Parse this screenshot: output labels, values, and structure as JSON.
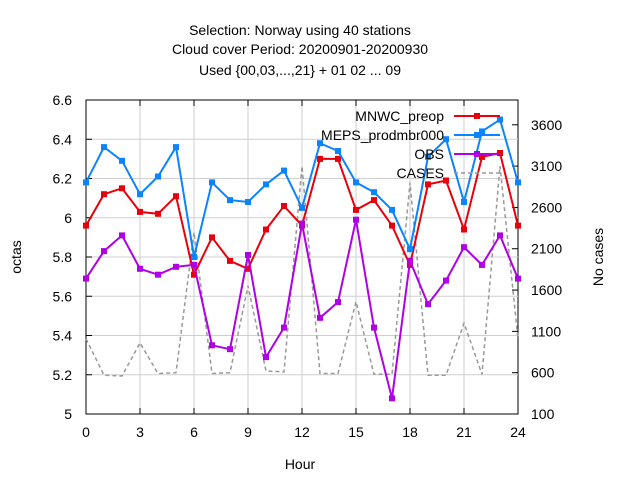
{
  "chart_data": {
    "type": "line",
    "title_lines": [
      "Selection: Norway using    40 stations",
      "Cloud cover   Period: 20200901-20200930",
      "Used {00,03,...,21} + 01 02 ... 09"
    ],
    "xlabel": "Hour",
    "ylabel": "octas",
    "y2label": "No cases",
    "xlim": [
      0,
      24
    ],
    "ylim": [
      5.0,
      6.6
    ],
    "y2lim": [
      100,
      3900
    ],
    "xticks": [
      "0",
      "3",
      "6",
      "9",
      "12",
      "15",
      "18",
      "21",
      "24"
    ],
    "yticks": [
      "5",
      "5.2",
      "5.4",
      "5.6",
      "5.8",
      "6",
      "6.2",
      "6.4",
      "6.6"
    ],
    "y2ticks": [
      "100",
      "600",
      "1100",
      "1600",
      "2100",
      "2600",
      "3100",
      "3600"
    ],
    "legend_position": "top-right",
    "x": [
      0,
      1,
      2,
      3,
      4,
      5,
      6,
      7,
      8,
      9,
      10,
      11,
      12,
      13,
      14,
      15,
      16,
      17,
      18,
      19,
      20,
      21,
      22,
      23,
      24
    ],
    "series": [
      {
        "name": "MNWC_preop",
        "color": "#e8000b",
        "axis": "y1",
        "values": [
          5.96,
          6.12,
          6.15,
          6.03,
          6.02,
          6.11,
          5.71,
          5.9,
          5.78,
          5.74,
          5.94,
          6.06,
          5.96,
          6.3,
          6.3,
          6.04,
          6.09,
          5.96,
          5.76,
          6.17,
          6.19,
          5.94,
          6.31,
          6.33,
          5.96
        ]
      },
      {
        "name": "MEPS_prodmbr000",
        "color": "#0a84ff",
        "axis": "y1",
        "values": [
          6.18,
          6.36,
          6.29,
          6.12,
          6.21,
          6.36,
          5.8,
          6.18,
          6.09,
          6.08,
          6.17,
          6.24,
          6.05,
          6.38,
          6.34,
          6.18,
          6.13,
          6.04,
          5.84,
          6.31,
          6.4,
          6.08,
          6.44,
          6.5,
          6.18
        ]
      },
      {
        "name": "OBS",
        "color": "#b000e6",
        "axis": "y1",
        "values": [
          5.69,
          5.83,
          5.91,
          5.74,
          5.71,
          5.75,
          5.76,
          5.35,
          5.33,
          5.81,
          5.29,
          5.44,
          5.97,
          5.49,
          5.57,
          5.99,
          5.44,
          5.08,
          5.78,
          5.56,
          5.68,
          5.85,
          5.76,
          5.91,
          5.69
        ]
      },
      {
        "name": "CASES",
        "color": "#999999",
        "axis": "y2",
        "values": [
          1010,
          570,
          560,
          960,
          590,
          600,
          2300,
          590,
          600,
          1650,
          620,
          610,
          3100,
          590,
          590,
          1460,
          580,
          580,
          2900,
          570,
          570,
          1200,
          580,
          3100,
          1010
        ]
      }
    ]
  }
}
